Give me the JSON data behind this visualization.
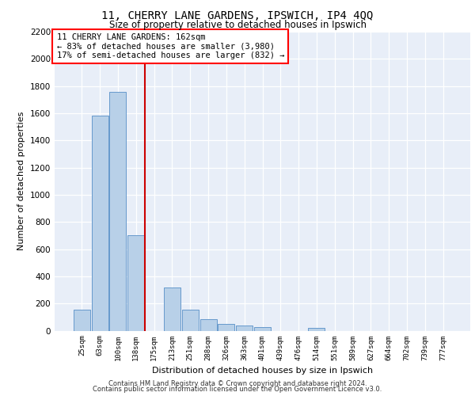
{
  "title": "11, CHERRY LANE GARDENS, IPSWICH, IP4 4QQ",
  "subtitle": "Size of property relative to detached houses in Ipswich",
  "xlabel": "Distribution of detached houses by size in Ipswich",
  "ylabel": "Number of detached properties",
  "categories": [
    "25sqm",
    "63sqm",
    "100sqm",
    "138sqm",
    "175sqm",
    "213sqm",
    "251sqm",
    "288sqm",
    "326sqm",
    "363sqm",
    "401sqm",
    "439sqm",
    "476sqm",
    "514sqm",
    "551sqm",
    "589sqm",
    "627sqm",
    "664sqm",
    "702sqm",
    "739sqm",
    "777sqm"
  ],
  "values": [
    155,
    1585,
    1760,
    700,
    0,
    315,
    155,
    85,
    50,
    35,
    25,
    0,
    0,
    20,
    0,
    0,
    0,
    0,
    0,
    0,
    0
  ],
  "bar_color": "#b8d0e8",
  "bar_edge_color": "#6699cc",
  "property_label": "11 CHERRY LANE GARDENS: 162sqm",
  "annotation_line1": "← 83% of detached houses are smaller (3,980)",
  "annotation_line2": "17% of semi-detached houses are larger (832) →",
  "vline_x_index": 3.5,
  "ylim": [
    0,
    2200
  ],
  "yticks": [
    0,
    200,
    400,
    600,
    800,
    1000,
    1200,
    1400,
    1600,
    1800,
    2000,
    2200
  ],
  "plot_bg_color": "#e8eef8",
  "footer1": "Contains HM Land Registry data © Crown copyright and database right 2024.",
  "footer2": "Contains public sector information licensed under the Open Government Licence v3.0."
}
